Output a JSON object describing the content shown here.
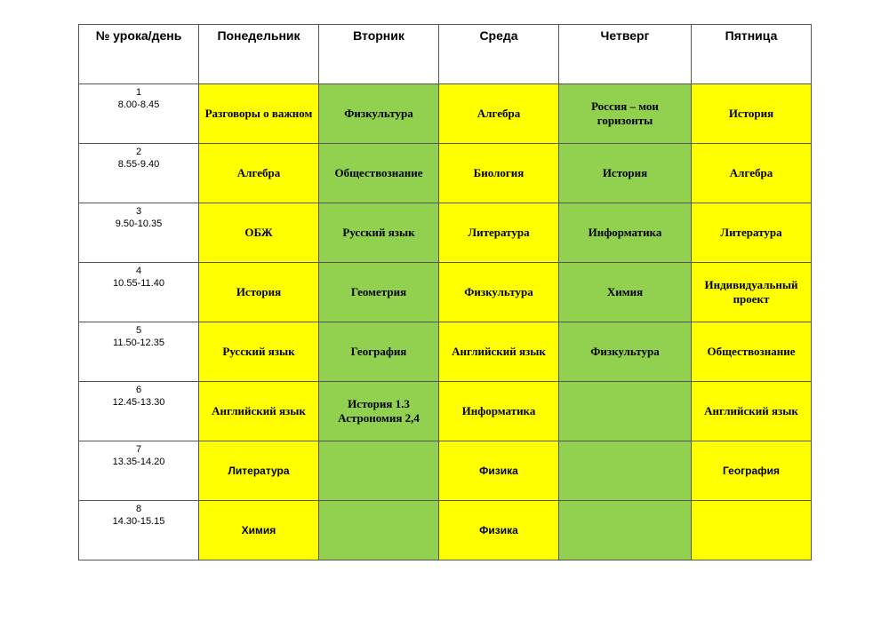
{
  "table": {
    "header": [
      "№ урока/день",
      "Понедельник",
      "Вторник",
      "Среда",
      "Четверг",
      "Пятница"
    ],
    "rows": [
      {
        "num": "1",
        "time": "8.00-8.45",
        "cells": [
          "Разговоры о важном",
          "Физкультура",
          "Алгебра",
          "Россия – мои горизонты",
          "История"
        ]
      },
      {
        "num": "2",
        "time": "8.55-9.40",
        "cells": [
          "Алгебра",
          "Обществознание",
          "Биология",
          "История",
          "Алгебра"
        ]
      },
      {
        "num": "3",
        "time": "9.50-10.35",
        "cells": [
          "ОБЖ",
          "Русский язык",
          "Литература",
          "Информатика",
          "Литература"
        ]
      },
      {
        "num": "4",
        "time": "10.55-11.40",
        "cells": [
          "История",
          "Геометрия",
          "Физкультура",
          "Химия",
          "Индивидуальный проект"
        ]
      },
      {
        "num": "5",
        "time": "11.50-12.35",
        "cells": [
          "Русский  язык",
          "География",
          "Английский  язык",
          "Физкультура",
          "Обществознание"
        ]
      },
      {
        "num": "6",
        "time": "12.45-13.30",
        "cells": [
          "Английский язык",
          [
            "История 1.3",
            "Астрономия 2,4"
          ],
          "Информатика",
          null,
          "Английский  язык"
        ]
      },
      {
        "num": "7",
        "time": "13.35-14.20",
        "cells": [
          "Литература",
          null,
          "Физика",
          null,
          "География"
        ]
      },
      {
        "num": "8",
        "time": "14.30-15.15",
        "cells": [
          "Химия",
          null,
          "Физика",
          null,
          null
        ]
      }
    ]
  }
}
